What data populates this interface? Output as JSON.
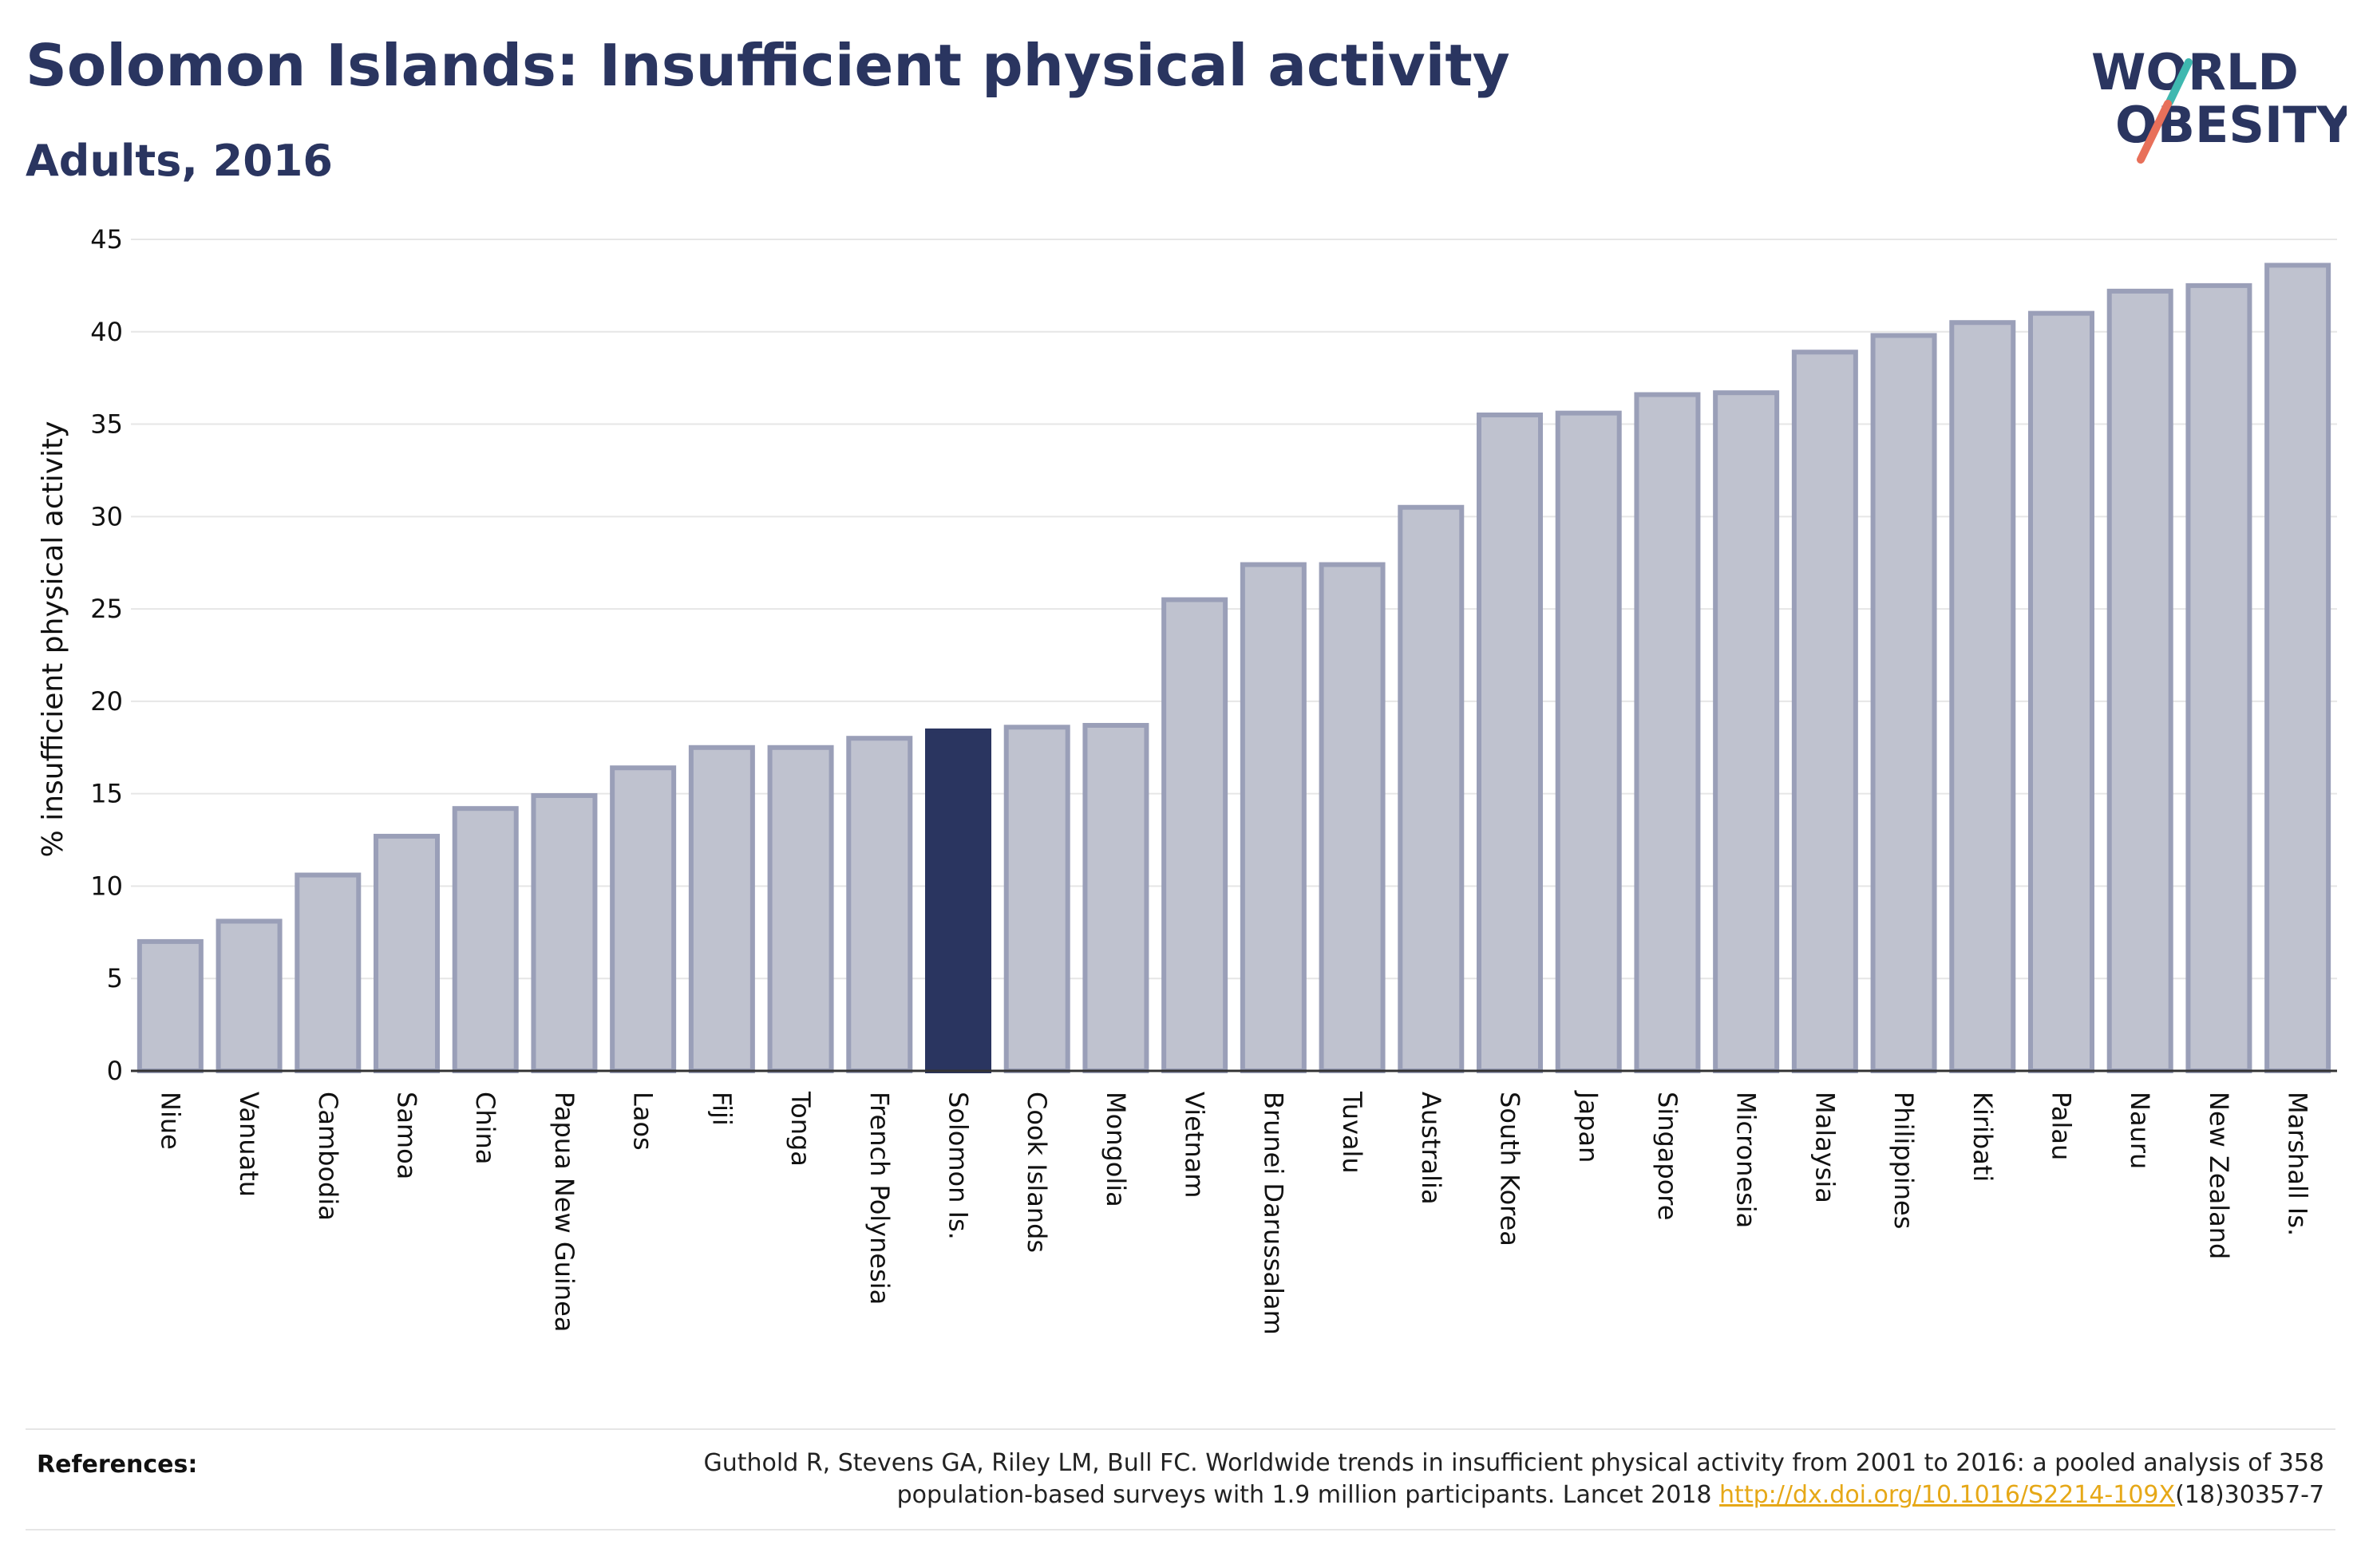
{
  "header": {
    "title": "Solomon Islands: Insufficient physical activity",
    "subtitle": "Adults, 2016"
  },
  "logo": {
    "line1": "WORLD",
    "line2": "OBESITY",
    "text_color": "#2a3560",
    "slash_colors": [
      "#3fb8b0",
      "#e8705a"
    ]
  },
  "references": {
    "label": "References:",
    "text_line1": "Guthold R, Stevens GA, Riley LM, Bull FC. Worldwide trends in insufficient physical activity from 2001 to 2016: a pooled analysis of 358",
    "text_line2_prefix": "population-based surveys with 1.9 million participants. Lancet 2018 ",
    "link": "http://dx.doi.org/10.1016/S2214-109X",
    "text_line2_suffix": "(18)30357-7"
  },
  "colors": {
    "highlight": "#2a3560",
    "bar_fill": "#bfc2cf",
    "bar_stroke": "#9a9fb8",
    "grid": "#e6e6e6",
    "axis": "#333333"
  },
  "chart_data": {
    "type": "bar",
    "title": "Solomon Islands: Insufficient physical activity",
    "subtitle": "Adults, 2016",
    "xlabel": "",
    "ylabel": "% insufficient physical activity",
    "ylim": [
      0,
      45
    ],
    "yticks": [
      0,
      5,
      10,
      15,
      20,
      25,
      30,
      35,
      40,
      45
    ],
    "grid": true,
    "highlight_category": "Solomon Is.",
    "categories": [
      "Niue",
      "Vanuatu",
      "Cambodia",
      "Samoa",
      "China",
      "Papua New Guinea",
      "Laos",
      "Fiji",
      "Tonga",
      "French Polynesia",
      "Solomon Is.",
      "Cook Islands",
      "Mongolia",
      "Vietnam",
      "Brunei Darussalam",
      "Tuvalu",
      "Australia",
      "South Korea",
      "Japan",
      "Singapore",
      "Micronesia",
      "Malaysia",
      "Philippines",
      "Kiribati",
      "Palau",
      "Nauru",
      "New Zealand",
      "Marshall Is."
    ],
    "values": [
      7.0,
      8.1,
      10.6,
      12.7,
      14.2,
      14.9,
      16.4,
      17.5,
      17.5,
      18.0,
      18.4,
      18.6,
      18.7,
      25.5,
      27.4,
      27.4,
      30.5,
      35.5,
      35.6,
      36.6,
      36.7,
      38.9,
      39.8,
      40.5,
      41.0,
      42.2,
      42.5,
      43.6
    ]
  }
}
